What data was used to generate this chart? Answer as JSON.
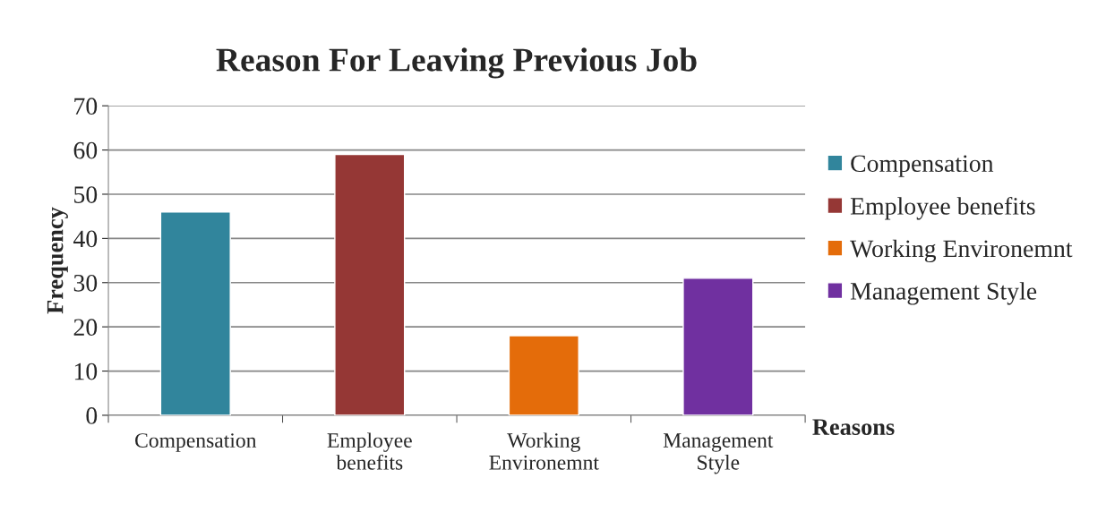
{
  "chart_data": {
    "type": "bar",
    "title": "Reason For Leaving Previous Job",
    "xlabel": "Reasons",
    "ylabel": "Frequency",
    "categories": [
      "Compensation",
      "Employee benefits",
      "Working Environemnt",
      "Management Style"
    ],
    "series": [
      {
        "name": "Compensation",
        "color": "#31859c",
        "values": [
          46,
          null,
          null,
          null
        ]
      },
      {
        "name": "Employee benefits",
        "color": "#953735",
        "values": [
          null,
          59,
          null,
          null
        ]
      },
      {
        "name": "Working Environemnt",
        "color": "#e46c0a",
        "values": [
          null,
          null,
          18,
          null
        ]
      },
      {
        "name": "Management Style",
        "color": "#7030a0",
        "values": [
          null,
          null,
          null,
          31
        ]
      }
    ],
    "ylim": [
      0,
      70
    ],
    "yticks": [
      0,
      10,
      20,
      30,
      40,
      50,
      60,
      70
    ],
    "grid": "y",
    "legend": "right"
  }
}
